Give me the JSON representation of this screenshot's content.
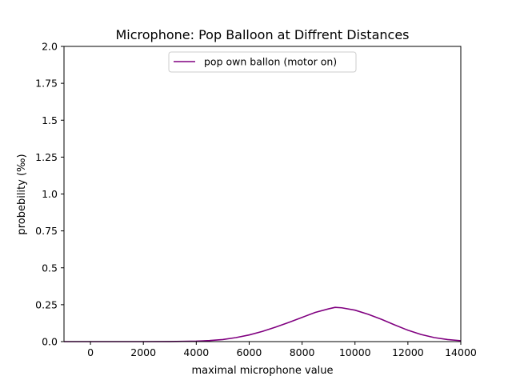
{
  "chart_data": {
    "type": "line",
    "title": "Microphone: Pop Balloon at Diffrent Distances",
    "xlabel": "maximal microphone value",
    "ylabel": "probebility (‰)",
    "xlim": [
      -1000,
      14000
    ],
    "ylim": [
      0,
      2.0
    ],
    "xticks": [
      0,
      2000,
      4000,
      6000,
      8000,
      10000,
      12000,
      14000
    ],
    "xtick_labels": [
      "0",
      "2000",
      "4000",
      "6000",
      "8000",
      "10000",
      "12000",
      "14000"
    ],
    "yticks": [
      0,
      0.25,
      0.5,
      0.75,
      1.0,
      1.25,
      1.5,
      1.75,
      2.0
    ],
    "ytick_labels": [
      "0.0",
      "0.25",
      "0.5",
      "0.75",
      "1.0",
      "1.25",
      "1.5",
      "1.75",
      "2.0"
    ],
    "grid": false,
    "legend_position": "upper-center",
    "series": [
      {
        "name": "pop own ballon (motor on)",
        "color": "#800080",
        "x": [
          -1000,
          0,
          1000,
          2000,
          3000,
          4000,
          4500,
          5000,
          5500,
          6000,
          6500,
          7000,
          7500,
          8000,
          8500,
          9000,
          9250,
          9500,
          10000,
          10500,
          11000,
          11500,
          12000,
          12500,
          13000,
          13500,
          14000
        ],
        "y": [
          0.0,
          0.0,
          0.0,
          0.0,
          0.0005,
          0.003,
          0.007,
          0.014,
          0.027,
          0.045,
          0.069,
          0.098,
          0.13,
          0.164,
          0.198,
          0.222,
          0.232,
          0.229,
          0.213,
          0.185,
          0.151,
          0.113,
          0.077,
          0.048,
          0.027,
          0.014,
          0.006
        ]
      }
    ]
  }
}
